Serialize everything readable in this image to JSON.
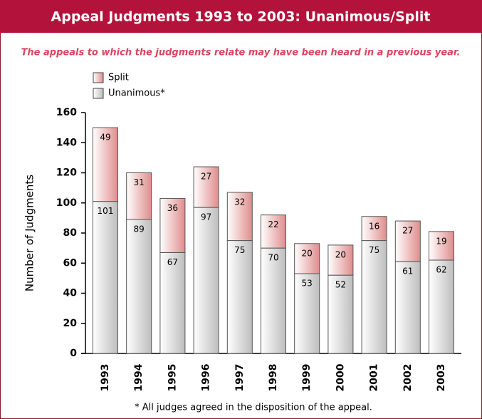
{
  "chart_data": {
    "type": "stacked_bar",
    "title": "Appeal Judgments 1993 to 2003: Unanimous/Split",
    "subtitle": "The appeals to which the judgments relate may have been heard in a previous year.",
    "ylabel": "Number of Judgments",
    "footnote": "* All judges agreed in the disposition of the appeal.",
    "categories": [
      "1993",
      "1994",
      "1995",
      "1996",
      "1997",
      "1998",
      "1999",
      "2000",
      "2001",
      "2002",
      "2003"
    ],
    "series": [
      {
        "name": "Unanimous*",
        "color": "#c4c4c4",
        "values": [
          101,
          89,
          67,
          97,
          75,
          70,
          53,
          52,
          75,
          61,
          62
        ]
      },
      {
        "name": "Split",
        "color": "#e49a9a",
        "values": [
          49,
          31,
          36,
          27,
          32,
          22,
          20,
          20,
          16,
          27,
          19
        ]
      }
    ],
    "ylim": [
      0,
      160
    ],
    "yticks": [
      0,
      20,
      40,
      60,
      80,
      100,
      120,
      140,
      160
    ]
  }
}
